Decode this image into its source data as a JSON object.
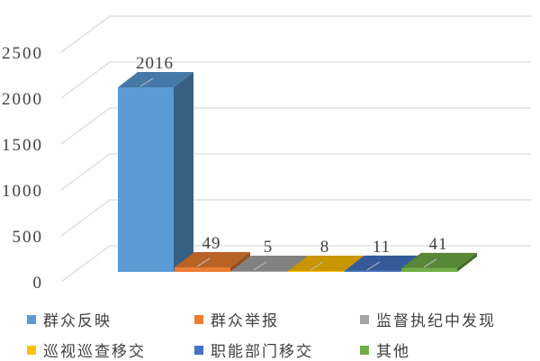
{
  "chart_data": {
    "type": "bar",
    "style": "3d-column",
    "categories": [
      "群众反映",
      "群众举报",
      "监督执纪中发现",
      "巡视巡查移交",
      "职能部门移交",
      "其他"
    ],
    "values": [
      2016,
      49,
      5,
      8,
      11,
      41
    ],
    "data_labels": [
      "2016",
      "49",
      "5",
      "8",
      "11",
      "41"
    ],
    "colors": [
      "#5B9BD5",
      "#ED7D31",
      "#A5A5A5",
      "#FFC000",
      "#4472C4",
      "#70AD47"
    ],
    "ylim": [
      0,
      2500
    ],
    "yticks": [
      "0",
      "500",
      "1000",
      "1500",
      "2000",
      "2500"
    ],
    "grid": true,
    "legend": "bottom",
    "title": "",
    "xlabel": "",
    "ylabel": ""
  }
}
